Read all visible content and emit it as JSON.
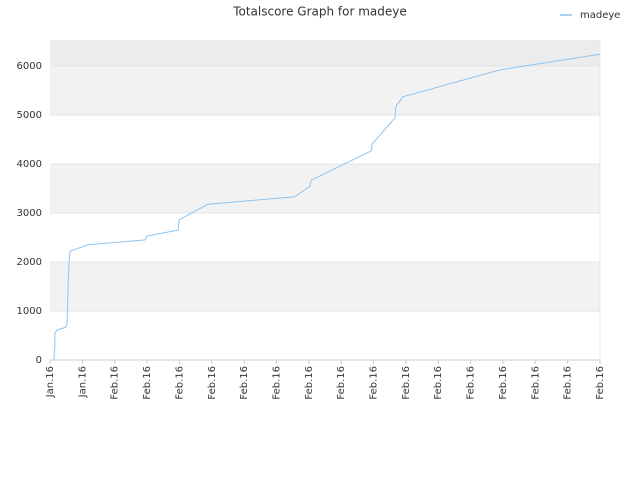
{
  "chart_data": {
    "type": "line",
    "title": "Totalscore Graph for madeye",
    "series": [
      {
        "name": "madeye",
        "color": "#8ec3ee",
        "x": [
          0.12,
          0.15,
          0.15,
          0.22,
          0.49,
          0.53,
          0.56,
          0.59,
          0.62,
          1.17,
          2.94,
          3.0,
          3.96,
          3.99,
          4.88,
          7.57,
          8.04,
          8.07,
          9.93,
          9.96,
          10.66,
          10.69,
          10.91,
          13.91,
          17
        ],
        "values": [
          0,
          300,
          550,
          610,
          670,
          750,
          1530,
          2000,
          2220,
          2350,
          2450,
          2530,
          2650,
          2860,
          3180,
          3330,
          3550,
          3670,
          4270,
          4410,
          4940,
          5180,
          5370,
          5920,
          6240
        ]
      }
    ],
    "xlim": [
      0,
      17
    ],
    "xticks": [
      {
        "value": 0,
        "label": "Jan.16"
      },
      {
        "value": 1,
        "label": "Jan.16"
      },
      {
        "value": 2,
        "label": "Feb.16"
      },
      {
        "value": 3,
        "label": "Feb.16"
      },
      {
        "value": 4,
        "label": "Feb.16"
      },
      {
        "value": 5,
        "label": "Feb.16"
      },
      {
        "value": 6,
        "label": "Feb.16"
      },
      {
        "value": 7,
        "label": "Feb.16"
      },
      {
        "value": 8,
        "label": "Feb.16"
      },
      {
        "value": 9,
        "label": "Feb.16"
      },
      {
        "value": 10,
        "label": "Feb.16"
      },
      {
        "value": 11,
        "label": "Feb.16"
      },
      {
        "value": 12,
        "label": "Feb.16"
      },
      {
        "value": 13,
        "label": "Feb.16"
      },
      {
        "value": 14,
        "label": "Feb.16"
      },
      {
        "value": 15,
        "label": "Feb.16"
      },
      {
        "value": 16,
        "label": "Feb.16"
      },
      {
        "value": 17,
        "label": "Feb.16"
      }
    ],
    "ylim": [
      0,
      6530
    ],
    "yticks": [
      0,
      1000,
      2000,
      3000,
      4000,
      5000,
      6000
    ],
    "grid": true
  }
}
